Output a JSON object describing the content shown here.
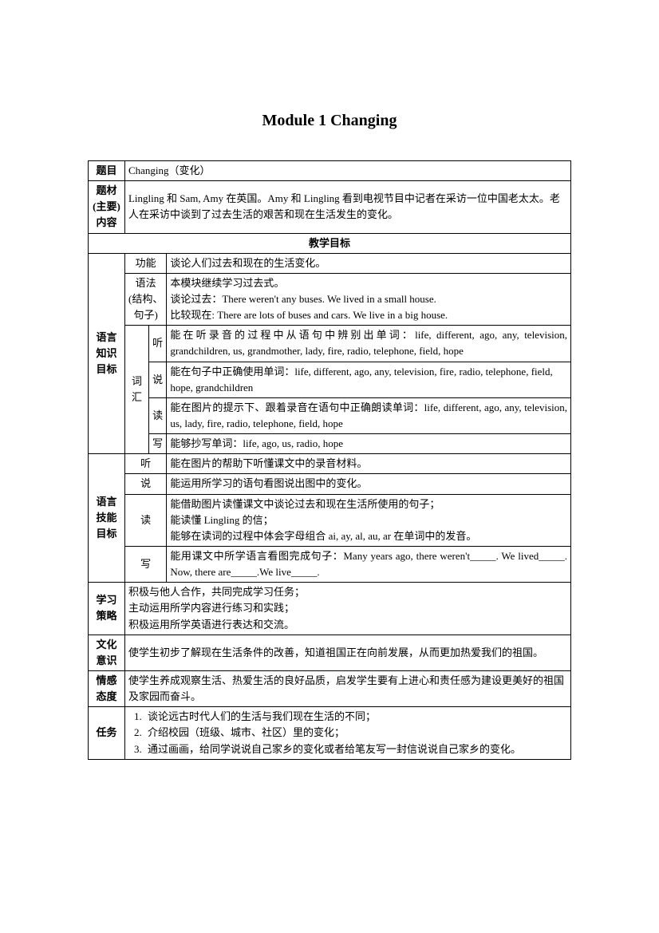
{
  "title": "Module 1 Changing",
  "rows": {
    "timu_label": "题目",
    "timu_val": "Changing（变化）",
    "ticai_label1": "题材",
    "ticai_label2": "(主要)",
    "ticai_label3": "内容",
    "ticai_val": "Lingling 和 Sam, Amy 在英国。Amy 和 Lingling 看到电视节目中记者在采访一位中国老太太。老人在采访中谈到了过去生活的艰苦和现在生活发生的变化。",
    "goals_header": "教学目标",
    "lang_know": "语言\n知识\n目标",
    "gongneng": "功能",
    "gongneng_val": "谈论人们过去和现在的生活变化。",
    "yufa1": "语法",
    "yufa2": "(结构、",
    "yufa3": "句子)",
    "yufa_val1": "本模块继续学习过去式。",
    "yufa_val2": "谈论过去：There weren't any buses. We lived in a small house.",
    "yufa_val3": "比较现在: There are lots of buses and cars. We live in a big house.",
    "cihui": "词汇",
    "ting": "听",
    "ting_val": "能在听录音的过程中从语句中辨别出单词：life, different, ago, any, television, grandchildren, us, grandmother, lady, fire, radio, telephone, field, hope",
    "shuo": "说",
    "shuo_val": "能在句子中正确使用单词：life, different, ago, any, television, fire, radio, telephone, field, hope, grandchildren",
    "du": "读",
    "du_val": "能在图片的提示下、跟着录音在语句中正确朗读单词：life, different, ago, any, television, us, lady, fire, radio, telephone, field, hope",
    "xie": "写",
    "xie_val": "能够抄写单词：life, ago, us, radio, hope",
    "lang_skill": "语言\n技能\n目标",
    "s_ting": "听",
    "s_ting_val": "能在图片的帮助下听懂课文中的录音材料。",
    "s_shuo": "说",
    "s_shuo_val": "能运用所学习的语句看图说出图中的变化。",
    "s_du": "读",
    "s_du_val1": "能借助图片读懂课文中谈论过去和现在生活所使用的句子；",
    "s_du_val2": "能读懂 Lingling 的信；",
    "s_du_val3": "能够在读词的过程中体会字母组合 ai, ay, al, au, ar 在单词中的发音。",
    "s_xie": "写",
    "s_xie_val": "能用课文中所学语言看图完成句子：Many years ago, there weren't_____. We lived_____. Now, there are_____.We live_____.",
    "strategy": "学习策略",
    "strategy_val1": "积极与他人合作，共同完成学习任务；",
    "strategy_val2": "主动运用所学内容进行练习和实践；",
    "strategy_val3": "积极运用所学英语进行表达和交流。",
    "culture": "文化意识",
    "culture_val": "使学生初步了解现在生活条件的改善，知道祖国正在向前发展，从而更加热爱我们的祖国。",
    "emotion": "情感态度",
    "emotion_val": "使学生养成观察生活、热爱生活的良好品质，启发学生要有上进心和责任感为建设更美好的祖国及家园而奋斗。",
    "task": "任务",
    "task1": "谈论远古时代人们的生活与我们现在生活的不同；",
    "task2": "介绍校园（班级、城市、社区）里的变化；",
    "task3": "通过画画，给同学说说自己家乡的变化或者给笔友写一封信说说自己家乡的变化。"
  }
}
